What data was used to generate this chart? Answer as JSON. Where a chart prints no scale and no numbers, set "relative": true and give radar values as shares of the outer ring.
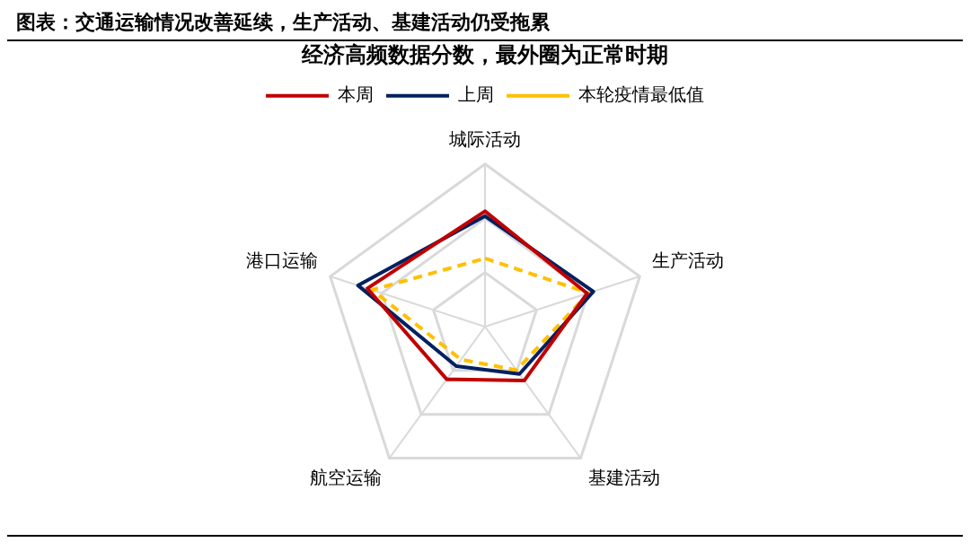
{
  "chart_data": {
    "type": "radar",
    "title": "图表：交通运输情况改善延续，生产活动、基建活动仍受拖累",
    "subtitle": "经济高频数据分数，最外圈为正常时期",
    "categories": [
      "城际活动",
      "生产活动",
      "基建活动",
      "航空运输",
      "港口运输"
    ],
    "relative": true,
    "legend": "top",
    "marker": "none",
    "series": [
      {
        "name": "本周",
        "color": "#c00000",
        "values": [
          0.71,
          0.66,
          0.41,
          0.4,
          0.76
        ]
      },
      {
        "name": "上周",
        "color": "#002060",
        "values": [
          0.68,
          0.7,
          0.36,
          0.3,
          0.82
        ]
      },
      {
        "name": "本轮疫情最低值",
        "color": "#ffc000",
        "line_style": "dashed",
        "values": [
          0.42,
          0.67,
          0.33,
          0.25,
          0.73
        ]
      }
    ]
  }
}
